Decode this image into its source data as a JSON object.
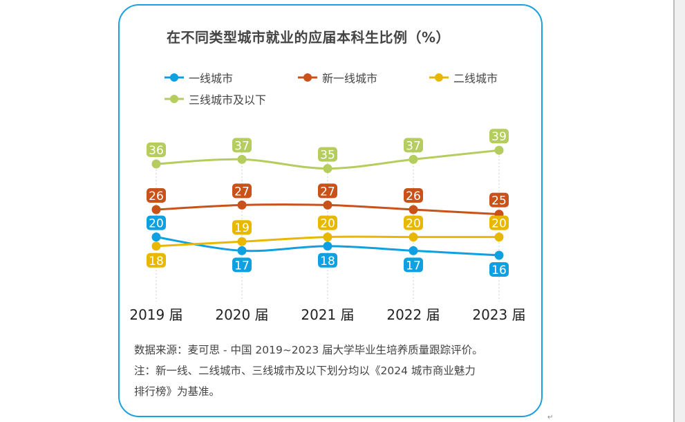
{
  "chart_data": {
    "type": "line",
    "title": "在不同类型城市就业的应届本科生比例（%）",
    "categories": [
      "2019 届",
      "2020 届",
      "2021 届",
      "2022 届",
      "2023 届"
    ],
    "series": [
      {
        "name": "一线城市",
        "color": "#0ea0e0",
        "values": [
          20,
          17,
          18,
          17,
          16
        ]
      },
      {
        "name": "新一线城市",
        "color": "#c9511a",
        "values": [
          26,
          27,
          27,
          26,
          25
        ]
      },
      {
        "name": "二线城市",
        "color": "#e8b800",
        "values": [
          18,
          19,
          20,
          20,
          20
        ]
      },
      {
        "name": "三线城市及以下",
        "color": "#b5cc5e",
        "values": [
          36,
          37,
          35,
          37,
          39
        ]
      }
    ],
    "legend_placement": "top",
    "grid": "dotted vertical lines at categories",
    "yaxis_visible": false
  },
  "notes": [
    "数据来源：麦可思 - 中国 2019~2023 届大学毕业生培养质量跟踪评价。",
    "注：新一线、二线城市、三线城市及以下划分均以《2024 城市商业魅力",
    "排行榜》为基准。"
  ],
  "border_color": "#1aa0dc"
}
